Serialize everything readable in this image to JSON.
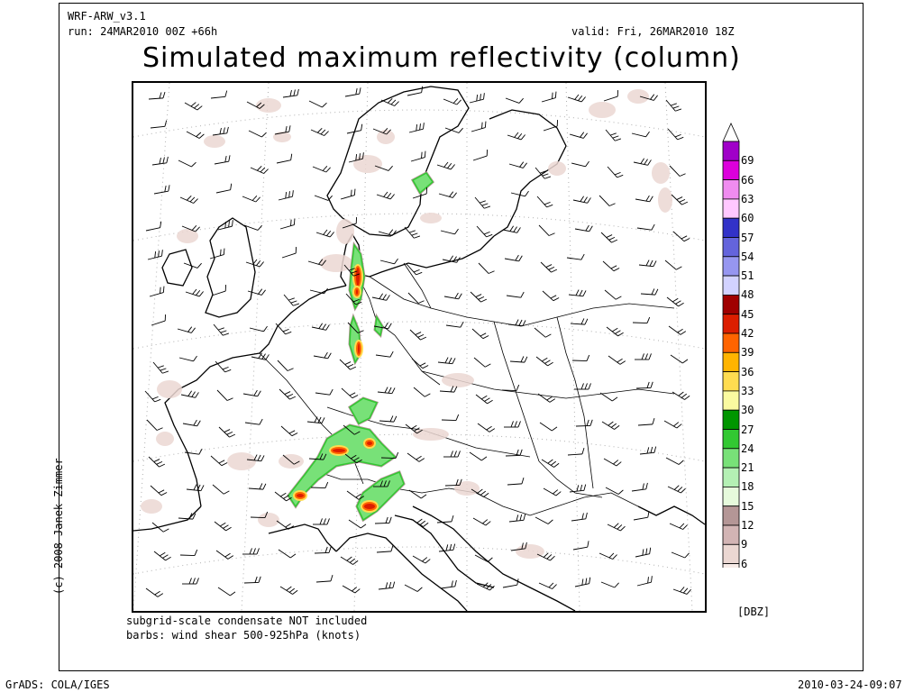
{
  "header": {
    "model": "WRF-ARW_v3.1",
    "run": "run: 24MAR2010 00Z +66h",
    "valid": "valid: Fri, 26MAR2010 18Z",
    "title": "Simulated maximum reflectivity (column)"
  },
  "footer": {
    "note1": "subgrid-scale condensate NOT included",
    "note2": "barbs: wind shear 500-925hPa (knots)",
    "copyright": "(c) 2008 Janek Zimmer",
    "grads": "GrADS: COLA/IGES",
    "timestamp": "2010-03-24-09:07"
  },
  "legend": {
    "units": "[DBZ]",
    "levels": [
      "69",
      "66",
      "63",
      "60",
      "57",
      "54",
      "51",
      "48",
      "45",
      "42",
      "39",
      "36",
      "33",
      "30",
      "27",
      "24",
      "21",
      "18",
      "15",
      "12",
      "9",
      "6"
    ],
    "colors": [
      "#a000c8",
      "#dc00dc",
      "#f08cf0",
      "#ffc8ff",
      "#3232c8",
      "#6464dc",
      "#9696f0",
      "#d2d2ff",
      "#a00000",
      "#dc1e00",
      "#ff6400",
      "#ffb400",
      "#ffdc50",
      "#fafaa0",
      "#009600",
      "#32c832",
      "#78e178",
      "#b4f0b4",
      "#e6fadc",
      "#b49696",
      "#d2b4b4",
      "#ebd7d2",
      "#f8ece8"
    ]
  },
  "map": {
    "coastline_color": "#000000",
    "border_color": "#000000",
    "grid_color": "#b0b0b0"
  }
}
